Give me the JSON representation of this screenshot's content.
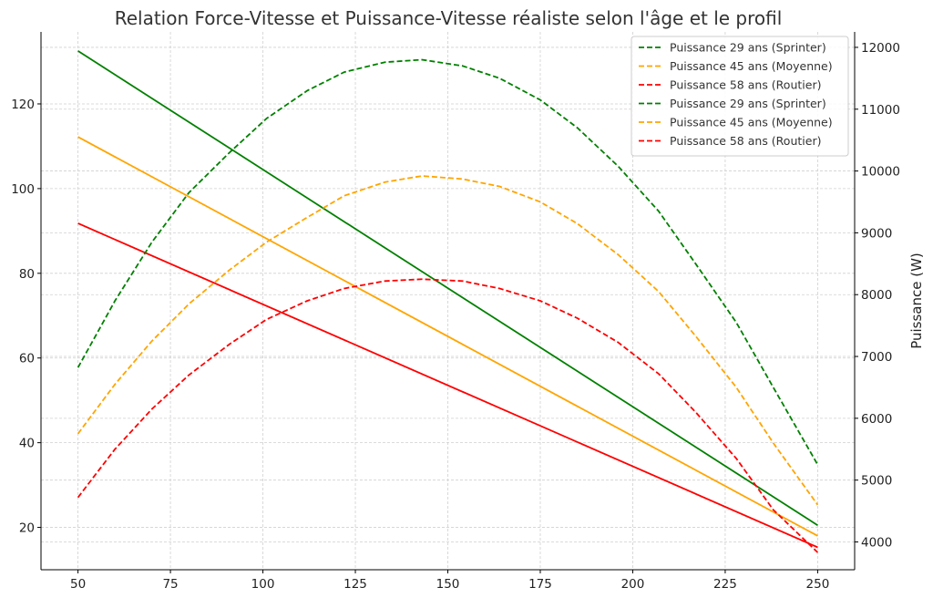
{
  "chart_data": {
    "type": "line",
    "title": "Relation Force-Vitesse et Puissance-Vitesse réaliste selon l'âge et le profil",
    "xlabel": "",
    "ylabel": "",
    "y2label": "Puissance (W)",
    "xlim": [
      40,
      260
    ],
    "ylim": [
      10,
      137
    ],
    "y2lim": [
      3550,
      12250
    ],
    "xticks": [
      50,
      75,
      100,
      125,
      150,
      175,
      200,
      225,
      250
    ],
    "yticks": [
      20,
      40,
      60,
      80,
      100,
      120
    ],
    "y2ticks": [
      4000,
      5000,
      6000,
      7000,
      8000,
      9000,
      10000,
      11000,
      12000
    ],
    "grid": true,
    "legend_position": "top-right",
    "force_series": [
      {
        "color": "#008000",
        "x": [
          50,
          250
        ],
        "y": [
          132.5,
          20.5
        ]
      },
      {
        "color": "#FFA500",
        "x": [
          50,
          250
        ],
        "y": [
          112.2,
          18.0
        ]
      },
      {
        "color": "#FF0000",
        "x": [
          50,
          250
        ],
        "y": [
          91.8,
          15.3
        ]
      }
    ],
    "power_series": [
      {
        "name": "Puissance 29 ans (Sprinter)",
        "color": "#008000",
        "x": [
          50,
          60,
          70,
          80,
          91,
          101,
          112,
          122,
          133,
          143,
          154,
          164,
          175,
          185,
          196,
          207,
          217,
          228,
          238,
          250
        ],
        "y": [
          6820,
          7900,
          8850,
          9650,
          10300,
          10850,
          11300,
          11600,
          11760,
          11800,
          11700,
          11500,
          11150,
          10700,
          10080,
          9350,
          8500,
          7550,
          6500,
          5250
        ]
      },
      {
        "name": "Puissance 45 ans (Moyenne)",
        "color": "#FFA500",
        "x": [
          50,
          60,
          70,
          80,
          91,
          101,
          112,
          122,
          133,
          143,
          154,
          164,
          175,
          185,
          196,
          207,
          217,
          228,
          238,
          250
        ],
        "y": [
          5750,
          6550,
          7250,
          7850,
          8400,
          8850,
          9250,
          9600,
          9820,
          9920,
          9870,
          9750,
          9500,
          9150,
          8650,
          8050,
          7330,
          6500,
          5600,
          4600
        ]
      },
      {
        "name": "Puissance 58 ans (Routier)",
        "color": "#FF0000",
        "x": [
          50,
          60,
          70,
          80,
          91,
          101,
          112,
          122,
          133,
          143,
          154,
          164,
          175,
          185,
          196,
          207,
          217,
          228,
          238,
          250
        ],
        "y": [
          4720,
          5500,
          6150,
          6700,
          7200,
          7600,
          7900,
          8100,
          8220,
          8250,
          8220,
          8100,
          7900,
          7620,
          7230,
          6720,
          6100,
          5350,
          4520,
          3830
        ]
      }
    ],
    "legend": [
      {
        "label": "Puissance 29 ans (Sprinter)",
        "color": "#008000"
      },
      {
        "label": "Puissance 45 ans (Moyenne)",
        "color": "#FFA500"
      },
      {
        "label": "Puissance 58 ans (Routier)",
        "color": "#FF0000"
      },
      {
        "label": "Puissance 29 ans (Sprinter)",
        "color": "#008000"
      },
      {
        "label": "Puissance 45 ans (Moyenne)",
        "color": "#FFA500"
      },
      {
        "label": "Puissance 58 ans (Routier)",
        "color": "#FF0000"
      }
    ]
  }
}
